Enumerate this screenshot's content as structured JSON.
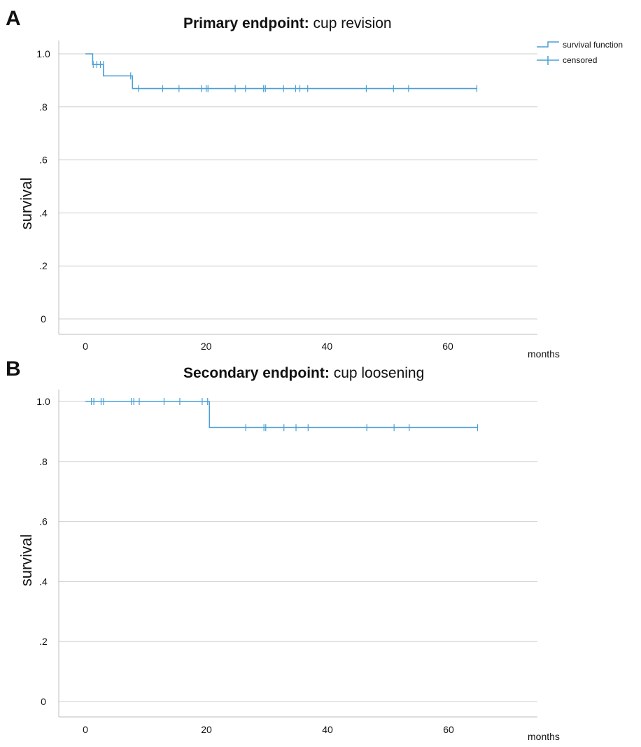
{
  "legend": {
    "survival_label": "survival function",
    "censored_label": "censored"
  },
  "series_color": "#4a9fd6",
  "chart_data": [
    {
      "type": "line",
      "panel_letter": "A",
      "title_bold": "Primary endpoint:",
      "title_rest": " cup revision",
      "ylabel": "survival",
      "xlabel": "months",
      "xlim": [
        -4,
        74
      ],
      "ylim": [
        -0.03,
        1.06
      ],
      "xticks": [
        0,
        20,
        40,
        60
      ],
      "yticks": [
        1.0,
        0.8,
        0.6,
        0.4,
        0.2,
        0
      ],
      "ytick_labels": [
        "1.0",
        ".8",
        ".6",
        ".4",
        ".2",
        "0"
      ],
      "grid": true,
      "legend_position": "top-right",
      "step": [
        [
          0,
          1.0
        ],
        [
          1.2,
          1.0
        ],
        [
          1.2,
          0.96
        ],
        [
          3,
          0.96
        ],
        [
          3,
          0.917
        ],
        [
          7.8,
          0.917
        ],
        [
          7.8,
          0.869
        ],
        [
          64.8,
          0.869
        ]
      ],
      "censored": [
        [
          1.3,
          0.96
        ],
        [
          1.9,
          0.96
        ],
        [
          2.5,
          0.96
        ],
        [
          3.0,
          0.96
        ],
        [
          7.5,
          0.917
        ],
        [
          8.8,
          0.869
        ],
        [
          12.8,
          0.869
        ],
        [
          15.5,
          0.869
        ],
        [
          19.2,
          0.869
        ],
        [
          20.0,
          0.869
        ],
        [
          20.3,
          0.869
        ],
        [
          24.8,
          0.869
        ],
        [
          26.5,
          0.869
        ],
        [
          29.5,
          0.869
        ],
        [
          29.8,
          0.869
        ],
        [
          32.8,
          0.869
        ],
        [
          34.8,
          0.869
        ],
        [
          35.5,
          0.869
        ],
        [
          36.8,
          0.869
        ],
        [
          46.5,
          0.869
        ],
        [
          51.0,
          0.869
        ],
        [
          53.5,
          0.869
        ],
        [
          64.8,
          0.869
        ]
      ]
    },
    {
      "type": "line",
      "panel_letter": "B",
      "title_bold": "Secondary endpoint:",
      "title_rest": " cup loosening",
      "ylabel": "survival",
      "xlabel": "months",
      "xlim": [
        -4,
        74
      ],
      "ylim": [
        -0.03,
        1.06
      ],
      "xticks": [
        0,
        20,
        40,
        60
      ],
      "yticks": [
        1.0,
        0.8,
        0.6,
        0.4,
        0.2,
        0
      ],
      "ytick_labels": [
        "1.0",
        ".8",
        ".6",
        ".4",
        ".2",
        "0"
      ],
      "grid": true,
      "legend_position": "top-right",
      "step": [
        [
          0,
          1.0
        ],
        [
          20.5,
          1.0
        ],
        [
          20.5,
          0.913
        ],
        [
          64.8,
          0.913
        ]
      ],
      "censored": [
        [
          1.0,
          1.0
        ],
        [
          1.4,
          1.0
        ],
        [
          2.6,
          1.0
        ],
        [
          3.0,
          1.0
        ],
        [
          7.6,
          1.0
        ],
        [
          8.0,
          1.0
        ],
        [
          8.9,
          1.0
        ],
        [
          13.0,
          1.0
        ],
        [
          15.6,
          1.0
        ],
        [
          19.3,
          1.0
        ],
        [
          20.2,
          1.0
        ],
        [
          26.5,
          0.913
        ],
        [
          29.5,
          0.913
        ],
        [
          29.8,
          0.913
        ],
        [
          32.8,
          0.913
        ],
        [
          34.8,
          0.913
        ],
        [
          36.8,
          0.913
        ],
        [
          46.5,
          0.913
        ],
        [
          51.0,
          0.913
        ],
        [
          53.5,
          0.913
        ],
        [
          64.8,
          0.913
        ]
      ]
    }
  ]
}
